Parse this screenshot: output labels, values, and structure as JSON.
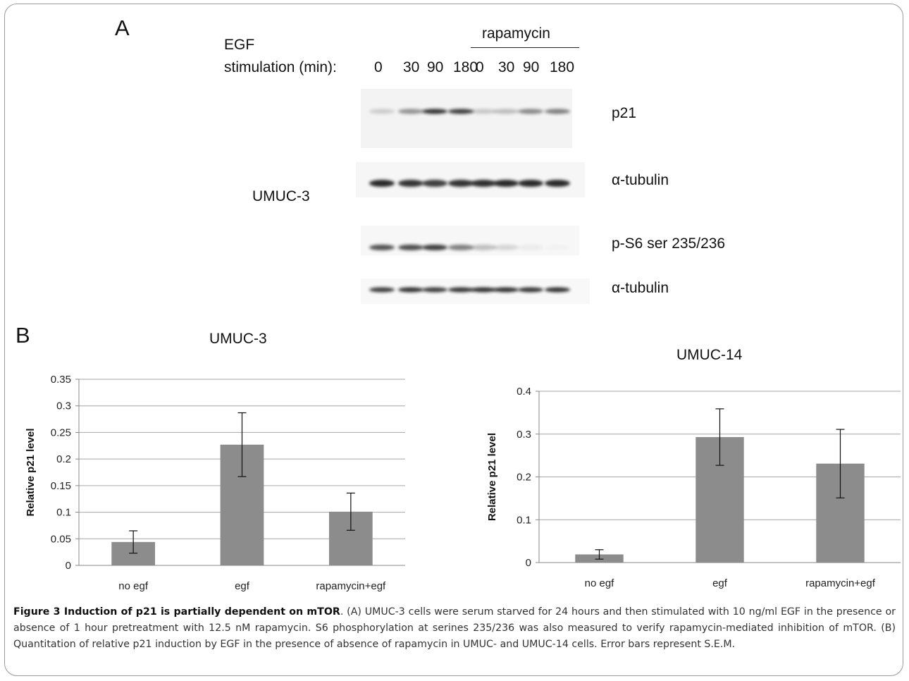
{
  "panel_a": {
    "letter": "A",
    "condition_label": "rapamycin",
    "row_label_egf": "EGF",
    "row_label_stim": "stimulation (min):",
    "lane_labels": [
      "0",
      "30",
      "90",
      "180",
      "0",
      "30",
      "90",
      "180"
    ],
    "cell_line": "UMUC-3",
    "blot_labels": [
      "p21",
      "α-tubulin",
      "p-S6 ser 235/236",
      "α-tubulin"
    ]
  },
  "panel_b": {
    "letter": "B"
  },
  "chart_data": [
    {
      "type": "bar",
      "title": "UMUC-3",
      "categories": [
        "no egf",
        "egf",
        "rapamycin+egf"
      ],
      "values": [
        0.044,
        0.227,
        0.101
      ],
      "errors": [
        0.021,
        0.06,
        0.035
      ],
      "ylabel": "Relative p21 level",
      "xlabel": "",
      "ylim": [
        0,
        0.35
      ],
      "yticks": [
        "0",
        "0.05",
        "0.1",
        "0.15",
        "0.2",
        "0.25",
        "0.3",
        "0.35"
      ],
      "grid": true,
      "bar_color": "#8c8c8c"
    },
    {
      "type": "bar",
      "title": "UMUC-14",
      "categories": [
        "no egf",
        "egf",
        "rapamycin+egf"
      ],
      "values": [
        0.019,
        0.293,
        0.231
      ],
      "errors": [
        0.011,
        0.066,
        0.08
      ],
      "ylabel": "Relative p21 level",
      "xlabel": "",
      "ylim": [
        0,
        0.4
      ],
      "yticks": [
        "0",
        "0.1",
        "0.2",
        "0.3",
        "0.4"
      ],
      "grid": true,
      "bar_color": "#8c8c8c"
    }
  ],
  "caption": {
    "label": "Figure 3 Induction of p21 is partially dependent on mTOR",
    "text": ". (A) UMUC-3 cells were serum starved for 24 hours and then stimulated with 10 ng/ml EGF in the presence or absence of 1 hour pretreatment with 12.5 nM rapamycin. S6 phosphorylation at serines 235/236 was also measured to verify rapamycin-mediated inhibition of mTOR. (B) Quantitation of relative p21 induction by EGF in the presence of absence of rapamycin in UMUC- and UMUC-14 cells. Error bars represent S.E.M."
  }
}
